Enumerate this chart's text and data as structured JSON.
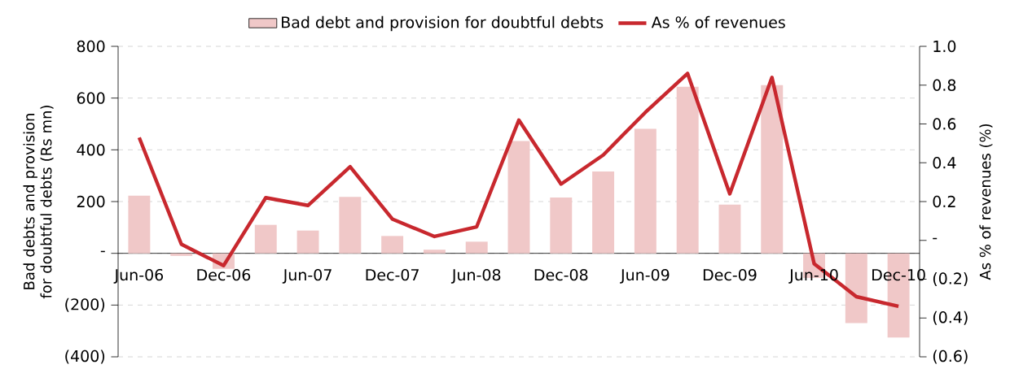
{
  "chart_data": {
    "type": "bar",
    "categories": [
      "Jun-06",
      null,
      "Dec-06",
      null,
      "Jun-07",
      null,
      "Dec-07",
      null,
      "Jun-08",
      null,
      "Dec-08",
      null,
      "Jun-09",
      null,
      "Dec-09",
      null,
      "Jun-10",
      null,
      "Dec-10"
    ],
    "series": [
      {
        "name": "Bad debt and provision for doubtful debts",
        "color": "#f0c8c8",
        "values": [
          223,
          -10,
          -60,
          110,
          88,
          218,
          67,
          14,
          45,
          434,
          216,
          316,
          481,
          644,
          188,
          650,
          -95,
          -270,
          -325
        ]
      },
      {
        "name": "As % of revenues",
        "type": "line",
        "axis": "y2",
        "color": "#c8282e",
        "values": [
          0.53,
          -0.02,
          -0.13,
          0.22,
          0.18,
          0.38,
          0.11,
          0.02,
          0.07,
          0.62,
          0.29,
          0.44,
          0.66,
          0.86,
          0.24,
          0.84,
          -0.12,
          -0.29,
          -0.34
        ]
      }
    ],
    "ylabel": "Bad debts and provision for doubtful debts (Rs mn)",
    "y2label": "As % of revenues (%)",
    "ylim": [
      -400,
      800
    ],
    "yticks": [
      800,
      600,
      400,
      200,
      {
        "value": 0,
        "label": "-"
      },
      {
        "value": -200,
        "label": "(200)"
      },
      {
        "value": -400,
        "label": "(400)"
      }
    ],
    "y2lim": [
      -0.6,
      1.0
    ],
    "y2ticks": [
      {
        "value": 1.0,
        "label": "1.0"
      },
      0.8,
      0.6,
      0.4,
      0.2,
      {
        "value": 0,
        "label": "-"
      },
      {
        "value": -0.2,
        "label": "(0.2)"
      },
      {
        "value": -0.4,
        "label": "(0.4)"
      },
      {
        "value": -0.6,
        "label": "(0.6)"
      }
    ],
    "grid": "y",
    "legend": "top"
  }
}
